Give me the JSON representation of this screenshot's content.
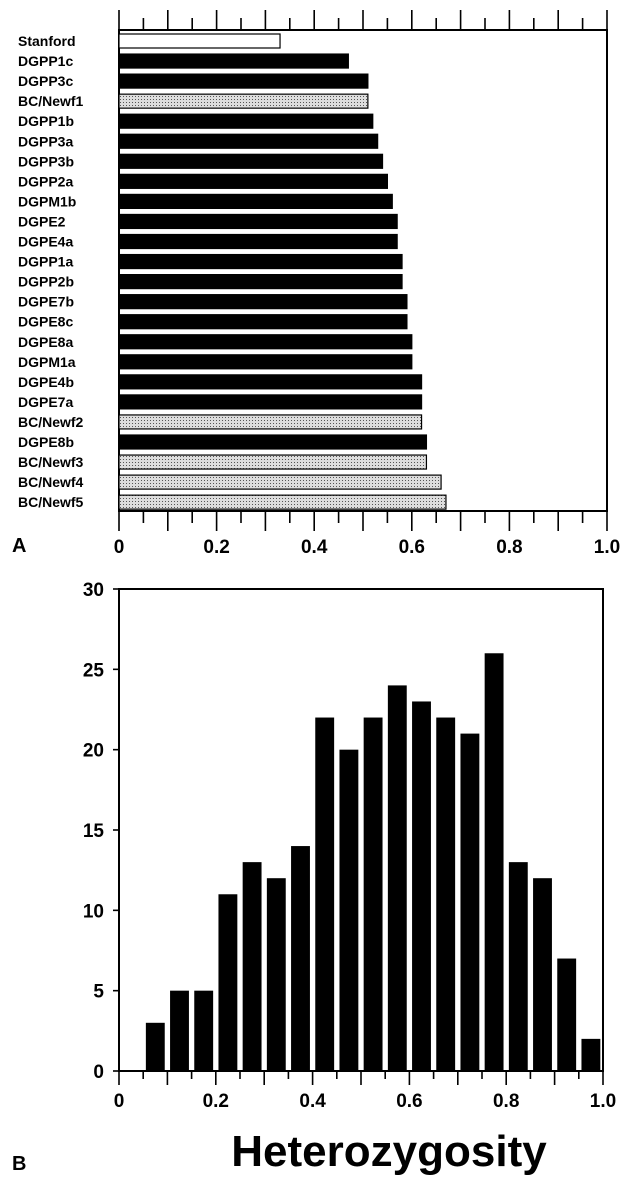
{
  "panel_a": {
    "label": "A",
    "chart_data": {
      "type": "bar",
      "orientation": "horizontal",
      "categories": [
        "Stanford",
        "DGPP1c",
        "DGPP3c",
        "BC/Newf1",
        "DGPP1b",
        "DGPP3a",
        "DGPP3b",
        "DGPP2a",
        "DGPM1b",
        "DGPE2",
        "DGPE4a",
        "DGPP1a",
        "DGPP2b",
        "DGPE7b",
        "DGPE8c",
        "DGPE8a",
        "DGPM1a",
        "DGPE4b",
        "DGPE7a",
        "BC/Newf2",
        "DGPE8b",
        "BC/Newf3",
        "BC/Newf4",
        "BC/Newf5"
      ],
      "values": [
        0.33,
        0.47,
        0.51,
        0.51,
        0.52,
        0.53,
        0.54,
        0.55,
        0.56,
        0.57,
        0.57,
        0.58,
        0.58,
        0.59,
        0.59,
        0.6,
        0.6,
        0.62,
        0.62,
        0.62,
        0.63,
        0.63,
        0.66,
        0.67
      ],
      "fills": [
        "white",
        "black",
        "black",
        "dotted",
        "black",
        "black",
        "black",
        "black",
        "black",
        "black",
        "black",
        "black",
        "black",
        "black",
        "black",
        "black",
        "black",
        "black",
        "black",
        "dotted",
        "black",
        "dotted",
        "dotted",
        "dotted"
      ],
      "xlim": [
        0,
        1.0
      ],
      "xticks": [
        "0",
        "0.2",
        "0.4",
        "0.6",
        "0.8",
        "1.0"
      ],
      "grid": false
    }
  },
  "panel_b": {
    "label": "B",
    "chart_data": {
      "type": "bar",
      "x": [
        0.075,
        0.125,
        0.175,
        0.225,
        0.275,
        0.325,
        0.375,
        0.425,
        0.475,
        0.525,
        0.575,
        0.625,
        0.675,
        0.725,
        0.775,
        0.825,
        0.875,
        0.925,
        0.975
      ],
      "values": [
        3,
        5,
        5,
        11,
        13,
        12,
        14,
        22,
        20,
        22,
        24,
        23,
        22,
        21,
        26,
        13,
        12,
        7,
        2
      ],
      "xlabel": "Heterozygosity",
      "xlim": [
        0,
        1.0
      ],
      "ylim": [
        0,
        30
      ],
      "xticks": [
        "0",
        "0.2",
        "0.4",
        "0.6",
        "0.8",
        "1.0"
      ],
      "yticks": [
        "0",
        "5",
        "10",
        "15",
        "20",
        "25",
        "30"
      ],
      "grid": false
    }
  },
  "colors": {
    "bar": "#000000",
    "dotted_bg": "#dddddd",
    "dotted_dot": "#555555"
  }
}
